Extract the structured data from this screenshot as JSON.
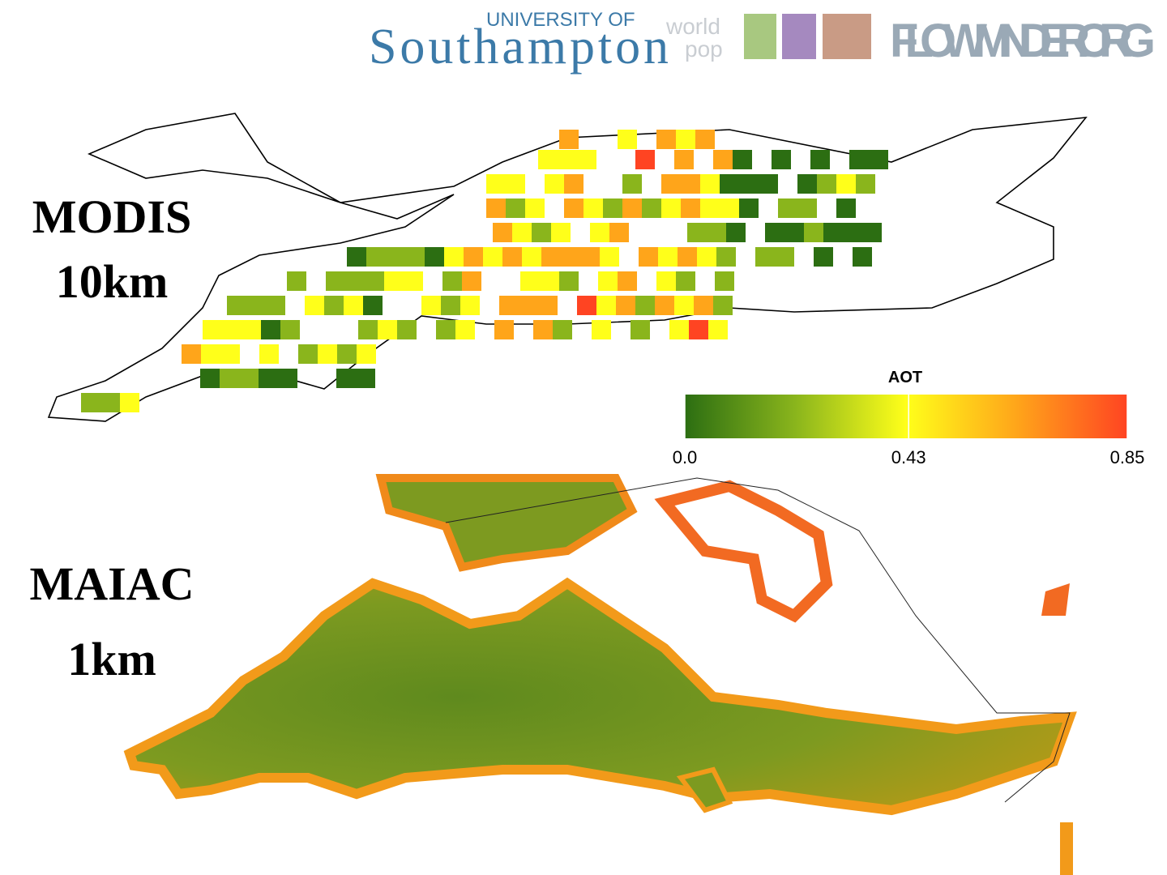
{
  "header": {
    "university_of": "UNIVERSITY OF",
    "southampton": "Southampton",
    "world": "world",
    "pop": "pop",
    "flowminder": "FLOWMINDER.ORG"
  },
  "panels": [
    {
      "name": "MODIS",
      "resolution": "10km"
    },
    {
      "name": "MAIAC",
      "resolution": "1km"
    }
  ],
  "legend": {
    "title": "AOT",
    "range": [
      0,
      0.85
    ],
    "ticks": [
      {
        "value": 0,
        "label": "0.0"
      },
      0.43,
      0.85
    ],
    "colors": [
      "#2c6e12",
      "#8ab51c",
      "#ffff1a",
      "#ffa51a",
      "#ff4422"
    ]
  }
}
